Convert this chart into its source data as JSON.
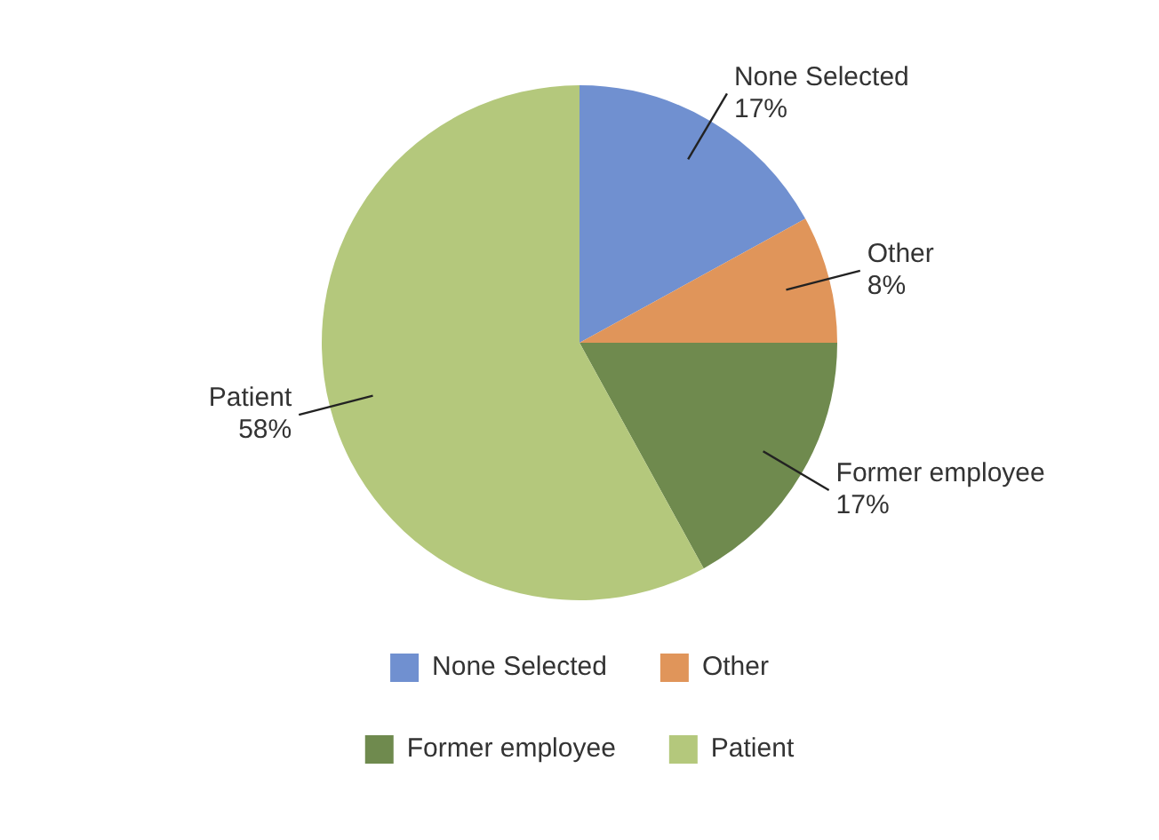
{
  "chart_data": {
    "type": "pie",
    "categories": [
      "None Selected",
      "Other",
      "Former employee",
      "Patient"
    ],
    "values": [
      17,
      8,
      17,
      58
    ],
    "value_labels": [
      "17%",
      "8%",
      "17%",
      "58%"
    ],
    "colors": [
      "#7090d0",
      "#e0955a",
      "#6f8a4e",
      "#b4c87c"
    ],
    "legend": "bottom",
    "data_labels": true
  }
}
